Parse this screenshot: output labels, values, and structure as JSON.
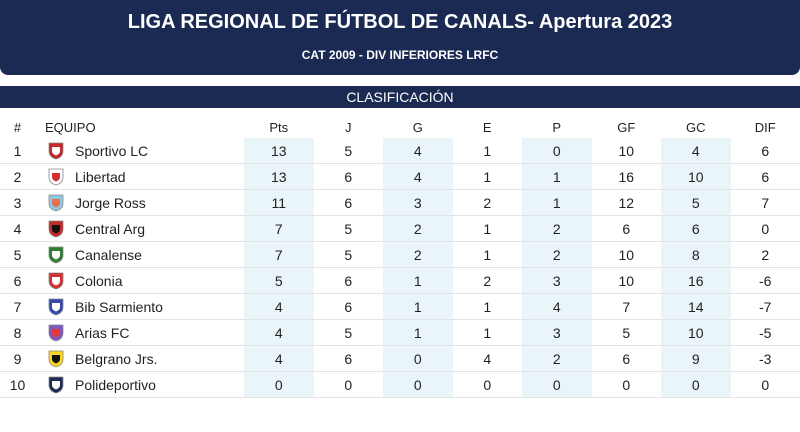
{
  "header": {
    "title": "LIGA REGIONAL DE FÚTBOL DE CANALS- Apertura 2023",
    "subtitle": "CAT 2009 - DIV INFERIORES LRFC"
  },
  "section": "CLASIFICACIÓN",
  "table": {
    "columns": [
      "#",
      "EQUIPO",
      "Pts",
      "J",
      "G",
      "E",
      "P",
      "GF",
      "GC",
      "DIF"
    ],
    "rows": [
      [
        1,
        "Sportivo LC",
        13,
        5,
        4,
        1,
        0,
        10,
        4,
        6
      ],
      [
        2,
        "Libertad",
        13,
        6,
        4,
        1,
        1,
        16,
        10,
        6
      ],
      [
        3,
        "Jorge Ross",
        11,
        6,
        3,
        2,
        1,
        12,
        5,
        7
      ],
      [
        4,
        "Central Arg",
        7,
        5,
        2,
        1,
        2,
        6,
        6,
        0
      ],
      [
        5,
        "Canalense",
        7,
        5,
        2,
        1,
        2,
        10,
        8,
        2
      ],
      [
        6,
        "Colonia",
        5,
        6,
        1,
        2,
        3,
        10,
        16,
        -6
      ],
      [
        7,
        "Bib Sarmiento",
        4,
        6,
        1,
        1,
        4,
        7,
        14,
        -7
      ],
      [
        8,
        "Arias FC",
        4,
        5,
        1,
        1,
        3,
        5,
        10,
        -5
      ],
      [
        9,
        "Belgrano Jrs.",
        4,
        6,
        0,
        4,
        2,
        6,
        9,
        -3
      ],
      [
        10,
        "Polideportivo",
        0,
        0,
        0,
        0,
        0,
        0,
        0,
        0
      ]
    ]
  }
}
